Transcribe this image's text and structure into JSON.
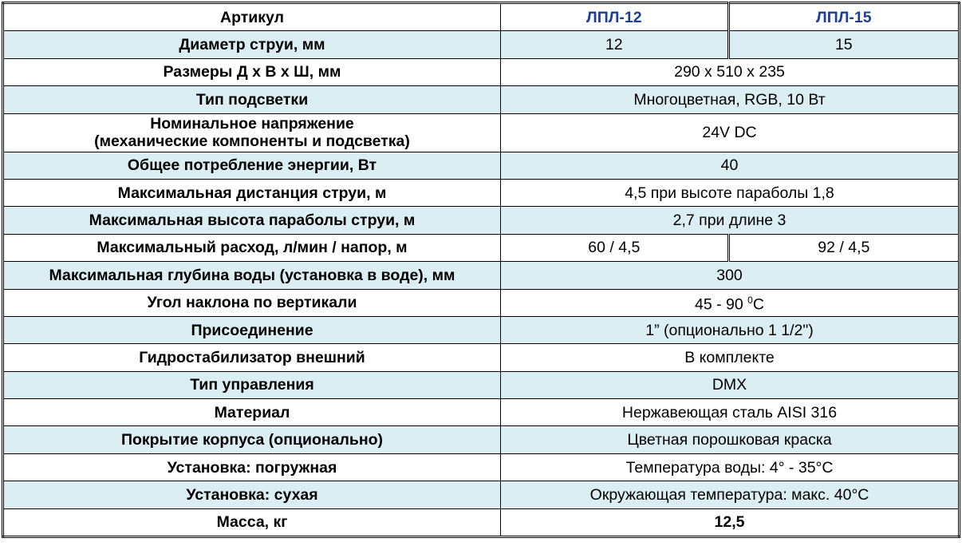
{
  "header": {
    "label": "Артикул",
    "models": [
      "ЛПЛ-12",
      "ЛПЛ-15"
    ]
  },
  "colors": {
    "model_text": "#1F3E96",
    "alt_row": "#DAEEF3"
  },
  "rows": [
    {
      "label": "Диаметр струи, мм",
      "values": [
        "12",
        "15"
      ]
    },
    {
      "label": "Размеры Д х В х Ш, мм",
      "value": "290 х 510 х 235"
    },
    {
      "label": "Тип подсветки",
      "value": "Многоцветная, RGB, 10 Вт"
    },
    {
      "label_line1": "Номинальное напряжение",
      "label_line2": "(механические компоненты и подсветка)",
      "value": "24V DC"
    },
    {
      "label": "Общее потребление энергии, Вт",
      "value": "40"
    },
    {
      "label": "Максимальная дистанция струи, м",
      "value": "4,5 при высоте параболы 1,8"
    },
    {
      "label": "Максимальная высота параболы струи, м",
      "value": "2,7 при длине 3"
    },
    {
      "label": "Максимальный расход, л/мин / напор, м",
      "values": [
        "60 / 4,5",
        "92 / 4,5"
      ]
    },
    {
      "label": "Максимальная глубина воды (установка в воде), мм",
      "value": "300"
    },
    {
      "label": "Угол наклона по вертикали",
      "value": "45 - 90 ",
      "sup": "0",
      "unit": "C"
    },
    {
      "label": "Присоединение",
      "value": "1” (опционально 1 1/2\")"
    },
    {
      "label": "Гидростабилизатор внешний",
      "value": "В комплекте"
    },
    {
      "label": "Тип управления",
      "value": "DMX"
    },
    {
      "label": "Материал",
      "value": "Нержавеющая сталь AISI 316"
    },
    {
      "label": "Покрытие корпуса (опционально)",
      "value": "Цветная порошковая краска"
    },
    {
      "label": "Установка: погружная",
      "value": "Температура воды: 4° - 35°C"
    },
    {
      "label": "Установка: сухая",
      "value": "Окружающая температура: макс. 40°C"
    },
    {
      "label": "Масса, кг",
      "value": "12,5"
    }
  ]
}
